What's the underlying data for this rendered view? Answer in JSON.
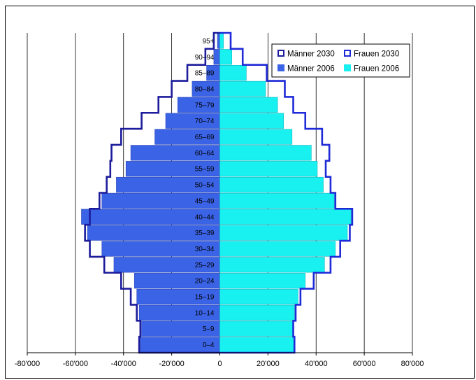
{
  "chart_data": {
    "type": "bar",
    "orientation": "horizontal-pyramid",
    "categories": [
      "0–4",
      "5–9",
      "10–14",
      "15–19",
      "20–24",
      "25–29",
      "30–34",
      "35–39",
      "40–44",
      "45–49",
      "50–54",
      "55–59",
      "60–64",
      "65–69",
      "70–74",
      "75–79",
      "80–84",
      "85–89",
      "90–94",
      "95+"
    ],
    "series": [
      {
        "name": "Männer 2006",
        "side": "left",
        "style": "filled",
        "color": "#3b63e6",
        "values": [
          33000,
          32500,
          33500,
          34500,
          35500,
          44000,
          49000,
          55000,
          57500,
          49000,
          43000,
          39000,
          37000,
          27000,
          22500,
          17500,
          11500,
          5500,
          2500,
          1000
        ]
      },
      {
        "name": "Frauen 2006",
        "side": "right",
        "style": "filled",
        "color": "#19f0f0",
        "values": [
          31000,
          30500,
          31000,
          32500,
          35500,
          43500,
          48000,
          53000,
          54500,
          47500,
          43000,
          40500,
          38000,
          30000,
          26500,
          24000,
          19000,
          11000,
          5000,
          1500
        ]
      },
      {
        "name": "Männer 2030",
        "side": "left",
        "style": "outline",
        "color": "#1c1c9c",
        "values": [
          33500,
          33000,
          34500,
          37000,
          41000,
          48000,
          54000,
          56000,
          54000,
          50000,
          47000,
          45500,
          45000,
          41000,
          32500,
          25500,
          20000,
          13500,
          6000,
          2500
        ]
      },
      {
        "name": "Frauen 2030",
        "side": "right",
        "style": "outline",
        "color": "#1e2ad8",
        "values": [
          31000,
          30500,
          31500,
          33500,
          39000,
          46000,
          50000,
          54000,
          55000,
          48000,
          46000,
          44000,
          45500,
          42500,
          35500,
          30500,
          27000,
          19500,
          9500,
          4500
        ]
      }
    ],
    "xlim": [
      -80000,
      80000
    ],
    "xticks": [
      -80000,
      -60000,
      -40000,
      -20000,
      0,
      20000,
      40000,
      60000,
      80000
    ],
    "xtick_labels": [
      "-80'000",
      "-60'000",
      "-40'000",
      "-20'000",
      "0",
      "20'000",
      "40'000",
      "60'000",
      "80'000"
    ],
    "grid": "vertical",
    "legend": {
      "placement": "top-right",
      "entries": [
        "Männer 2030",
        "Frauen 2030",
        "Männer 2006",
        "Frauen 2006"
      ]
    },
    "title": "",
    "xlabel": "",
    "ylabel": ""
  }
}
